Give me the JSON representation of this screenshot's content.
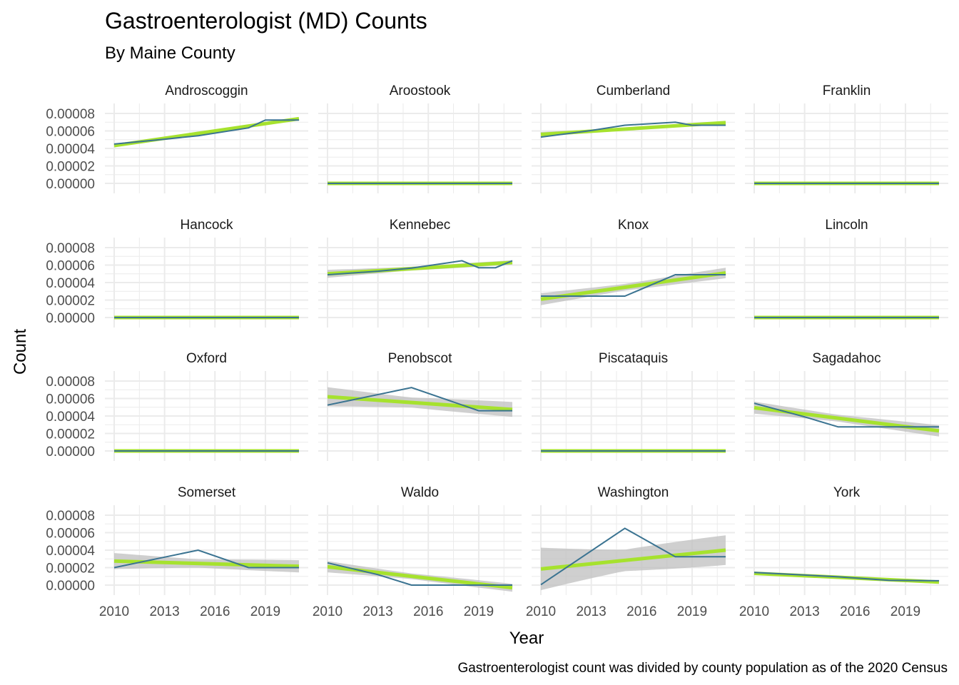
{
  "chart_data": {
    "type": "line",
    "title": "Gastroenterologist (MD) Counts",
    "subtitle": "By Maine County",
    "xlabel": "Year",
    "ylabel": "Count",
    "caption": "Gastroenterologist count was divided by county population as of the 2020 Census",
    "xlim": [
      2010,
      2021
    ],
    "ylim": [
      0,
      8e-05
    ],
    "x_ticks": [
      2010,
      2013,
      2016,
      2019
    ],
    "x_tick_labels": [
      "2010",
      "2013",
      "2016",
      "2019"
    ],
    "y_ticks": [
      0,
      2e-05,
      4e-05,
      6e-05,
      8e-05
    ],
    "y_tick_labels": [
      "0.00000",
      "0.00002",
      "0.00004",
      "0.00006",
      "0.00008"
    ],
    "grid": true,
    "colors": {
      "line": "#3a7391",
      "trend": "#a6e22e",
      "band": "#bfbfbf",
      "grid": "#ebebeb"
    },
    "panels": [
      {
        "name": "Androscoggin",
        "x": [
          2010,
          2013,
          2015,
          2018,
          2019,
          2021
        ],
        "values": [
          4.5e-05,
          5.05e-05,
          5.45e-05,
          6.35e-05,
          7.25e-05,
          7.25e-05
        ],
        "trend": [
          4.32e-05,
          7.4e-05
        ],
        "band": [
          1e-06,
          1e-06
        ]
      },
      {
        "name": "Aroostook",
        "x": [
          2010,
          2021
        ],
        "values": [
          0,
          0
        ],
        "trend": [
          0,
          0
        ],
        "band": [
          0,
          0
        ]
      },
      {
        "name": "Cumberland",
        "x": [
          2010,
          2013,
          2015,
          2018,
          2019,
          2021
        ],
        "values": [
          5.3e-05,
          6.05e-05,
          6.65e-05,
          7e-05,
          6.65e-05,
          6.65e-05
        ],
        "trend": [
          5.6e-05,
          6.95e-05
        ],
        "band": [
          3e-06,
          1.5e-06
        ]
      },
      {
        "name": "Franklin",
        "x": [
          2010,
          2021
        ],
        "values": [
          0,
          0
        ],
        "trend": [
          0,
          0
        ],
        "band": [
          0,
          0
        ]
      },
      {
        "name": "Hancock",
        "x": [
          2010,
          2021
        ],
        "values": [
          0,
          0
        ],
        "trend": [
          0,
          0
        ],
        "band": [
          0,
          0
        ]
      },
      {
        "name": "Kennebec",
        "x": [
          2010,
          2013,
          2015,
          2018,
          2019,
          2020,
          2021
        ],
        "values": [
          4.9e-05,
          5.3e-05,
          5.65e-05,
          6.5e-05,
          5.7e-05,
          5.7e-05,
          6.5e-05
        ],
        "trend": [
          5e-05,
          6.3e-05
        ],
        "band": [
          5e-06,
          2.5e-06
        ]
      },
      {
        "name": "Knox",
        "x": [
          2010,
          2013,
          2015,
          2018,
          2019,
          2021
        ],
        "values": [
          2.45e-05,
          2.45e-05,
          2.45e-05,
          4.9e-05,
          4.9e-05,
          4.9e-05
        ],
        "trend": [
          2.1e-05,
          5.1e-05
        ],
        "band": [
          7.5e-06,
          6e-06
        ]
      },
      {
        "name": "Lincoln",
        "x": [
          2010,
          2021
        ],
        "values": [
          0,
          0
        ],
        "trend": [
          0,
          0
        ],
        "band": [
          0,
          0
        ]
      },
      {
        "name": "Oxford",
        "x": [
          2010,
          2021
        ],
        "values": [
          0,
          0
        ],
        "trend": [
          0,
          0
        ],
        "band": [
          0,
          0
        ]
      },
      {
        "name": "Penobscot",
        "x": [
          2010,
          2015,
          2019,
          2021
        ],
        "values": [
          5.25e-05,
          7.25e-05,
          4.6e-05,
          4.6e-05
        ],
        "trend": [
          6.2e-05,
          4.75e-05
        ],
        "band": [
          1.2e-05,
          8.5e-06
        ]
      },
      {
        "name": "Piscataquis",
        "x": [
          2010,
          2021
        ],
        "values": [
          0,
          0
        ],
        "trend": [
          0,
          0
        ],
        "band": [
          0,
          0
        ]
      },
      {
        "name": "Sagadahoc",
        "x": [
          2010,
          2013,
          2015,
          2018,
          2021
        ],
        "values": [
          5.45e-05,
          3.9e-05,
          2.75e-05,
          2.75e-05,
          2.75e-05
        ],
        "trend": [
          4.95e-05,
          2.3e-05
        ],
        "band": [
          7.5e-06,
          6.5e-06
        ]
      },
      {
        "name": "Somerset",
        "x": [
          2010,
          2013,
          2015,
          2018,
          2021
        ],
        "values": [
          2e-05,
          3.2e-05,
          4e-05,
          2e-05,
          2e-05
        ],
        "trend": [
          2.75e-05,
          2.15e-05
        ],
        "band": [
          1e-05,
          7e-06
        ]
      },
      {
        "name": "Waldo",
        "x": [
          2010,
          2013,
          2015,
          2018,
          2021
        ],
        "values": [
          2.55e-05,
          1.2e-05,
          0.0,
          0.0,
          0.0
        ],
        "trend": [
          2.1e-05,
          -3e-06
        ],
        "band": [
          7e-06,
          4.5e-06
        ]
      },
      {
        "name": "Washington",
        "x": [
          2010,
          2015,
          2018,
          2021
        ],
        "values": [
          5e-07,
          6.5e-05,
          3.25e-05,
          3.25e-05
        ],
        "trend": [
          1.85e-05,
          4e-05
        ],
        "band": [
          2.65e-05,
          1.7e-05
        ]
      },
      {
        "name": "York",
        "x": [
          2010,
          2013,
          2015,
          2018,
          2021
        ],
        "values": [
          1.45e-05,
          1.15e-05,
          9.5e-06,
          5.5e-06,
          5e-06
        ],
        "trend": [
          1.35e-05,
          3.5e-06
        ],
        "band": [
          1.2e-06,
          1e-06
        ]
      }
    ]
  }
}
